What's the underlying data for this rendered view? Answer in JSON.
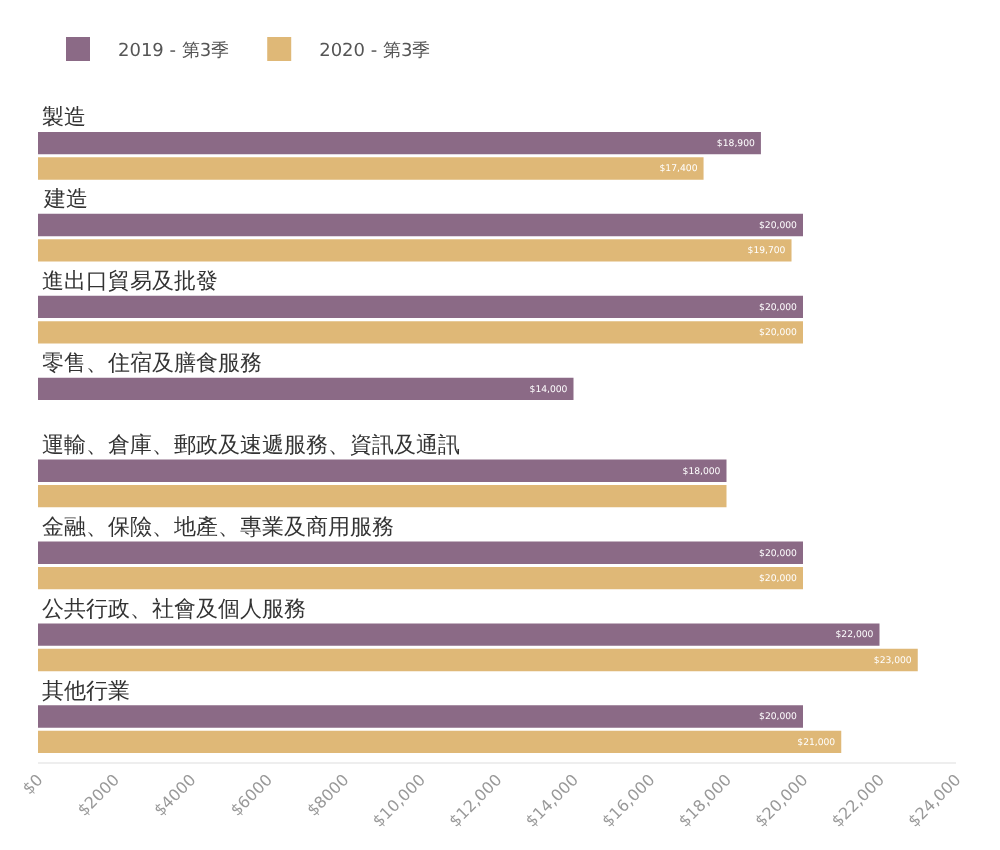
{
  "chart_data": {
    "type": "bar",
    "orientation": "horizontal",
    "categories": [
      "製造",
      "建造",
      "進出口貿易及批發",
      "零售、住宿及膳食服務",
      "運輸、倉庫、郵政及速遞服務、資訊及通訊",
      "金融、保險、地產、專業及商用服務",
      "公共行政、社會及個人服務",
      "其他行業"
    ],
    "series": [
      {
        "name": "2019 - 第3季",
        "color": "#8b6a86",
        "values": [
          18900,
          20000,
          20000,
          14000,
          18000,
          20000,
          22000,
          20000
        ],
        "value_labels": [
          "$18,900",
          "$20,000",
          "$20,000",
          "$14,000",
          "$18,000",
          "$20,000",
          "$22,000",
          "$20,000"
        ]
      },
      {
        "name": "2020 - 第3季",
        "color": "#dfb877",
        "values": [
          17400,
          19700,
          20000,
          null,
          18000,
          20000,
          23000,
          21000
        ],
        "value_labels": [
          "$17,400",
          "$19,700",
          "$20,000",
          null,
          null,
          "$20,000",
          "$23,000",
          "$21,000"
        ]
      }
    ],
    "xlim": [
      0,
      24000
    ],
    "xticks": [
      {
        "value": 0,
        "label": "$0"
      },
      {
        "value": 2000,
        "label": "$2000"
      },
      {
        "value": 4000,
        "label": "$4000"
      },
      {
        "value": 6000,
        "label": "$6000"
      },
      {
        "value": 8000,
        "label": "$8000"
      },
      {
        "value": 10000,
        "label": "$10,000"
      },
      {
        "value": 12000,
        "label": "$12,000"
      },
      {
        "value": 14000,
        "label": "$14,000"
      },
      {
        "value": 16000,
        "label": "$16,000"
      },
      {
        "value": 18000,
        "label": "$18,000"
      },
      {
        "value": 20000,
        "label": "$20,000"
      },
      {
        "value": 22000,
        "label": "$22,000"
      },
      {
        "value": 24000,
        "label": "$24,000"
      }
    ],
    "legend": "top left"
  }
}
